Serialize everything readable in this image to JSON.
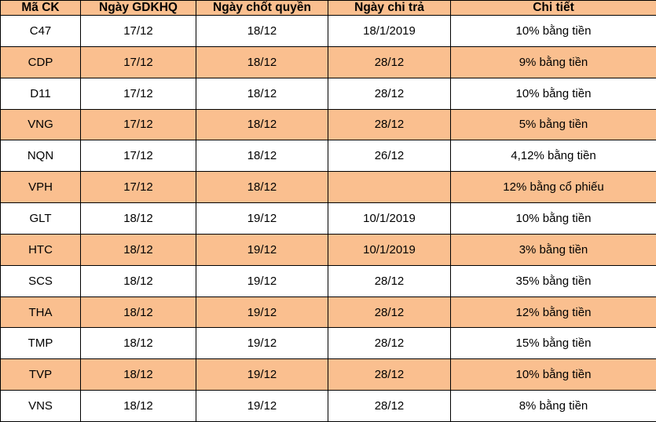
{
  "table": {
    "title_semantic": "dividend-schedule-table",
    "headers": [
      "Mã CK",
      "Ngày GDKHQ",
      "Ngày chốt quyền",
      "Ngày chi trả",
      "Chi tiết"
    ],
    "column_keys": [
      "stock-code",
      "ex-dividend-date",
      "record-date",
      "payment-date",
      "detail"
    ],
    "rows": [
      [
        "C47",
        "17/12",
        "18/12",
        "18/1/2019",
        "10% bằng tiền"
      ],
      [
        "CDP",
        "17/12",
        "18/12",
        "28/12",
        "9% bằng tiền"
      ],
      [
        "D11",
        "17/12",
        "18/12",
        "28/12",
        "10% bằng tiền"
      ],
      [
        "VNG",
        "17/12",
        "18/12",
        "28/12",
        "5% bằng tiền"
      ],
      [
        "NQN",
        "17/12",
        "18/12",
        "26/12",
        "4,12% bằng tiền"
      ],
      [
        "VPH",
        "17/12",
        "18/12",
        "",
        "12% bằng cổ phiếu"
      ],
      [
        "GLT",
        "18/12",
        "19/12",
        "10/1/2019",
        "10% bằng tiền"
      ],
      [
        "HTC",
        "18/12",
        "19/12",
        "10/1/2019",
        "3% bằng tiền"
      ],
      [
        "SCS",
        "18/12",
        "19/12",
        "28/12",
        "35% bằng tiền"
      ],
      [
        "THA",
        "18/12",
        "19/12",
        "28/12",
        "12% bằng tiền"
      ],
      [
        "TMP",
        "18/12",
        "19/12",
        "28/12",
        "15% bằng tiền"
      ],
      [
        "TVP",
        "18/12",
        "19/12",
        "28/12",
        "10% bằng tiền"
      ],
      [
        "VNS",
        "18/12",
        "19/12",
        "28/12",
        "8% bằng tiền"
      ]
    ],
    "colors": {
      "header_bg": "#FABF8F",
      "alt_row_bg": "#FABF8F",
      "row_bg": "#FFFFFF",
      "border": "#000000",
      "text": "#000000"
    }
  },
  "chart_data": {
    "type": "table",
    "title": "",
    "columns": [
      "Mã CK",
      "Ngày GDKHQ",
      "Ngày chốt quyền",
      "Ngày chi trả",
      "Chi tiết"
    ],
    "rows": [
      [
        "C47",
        "17/12",
        "18/12",
        "18/1/2019",
        "10% bằng tiền"
      ],
      [
        "CDP",
        "17/12",
        "18/12",
        "28/12",
        "9% bằng tiền"
      ],
      [
        "D11",
        "17/12",
        "18/12",
        "28/12",
        "10% bằng tiền"
      ],
      [
        "VNG",
        "17/12",
        "18/12",
        "28/12",
        "5% bằng tiền"
      ],
      [
        "NQN",
        "17/12",
        "18/12",
        "26/12",
        "4,12% bằng tiền"
      ],
      [
        "VPH",
        "17/12",
        "18/12",
        "",
        "12% bằng cổ phiếu"
      ],
      [
        "GLT",
        "18/12",
        "19/12",
        "10/1/2019",
        "10% bằng tiền"
      ],
      [
        "HTC",
        "18/12",
        "19/12",
        "10/1/2019",
        "3% bằng tiền"
      ],
      [
        "SCS",
        "18/12",
        "19/12",
        "28/12",
        "35% bằng tiền"
      ],
      [
        "THA",
        "18/12",
        "19/12",
        "28/12",
        "12% bằng tiền"
      ],
      [
        "TMP",
        "18/12",
        "19/12",
        "28/12",
        "15% bằng tiền"
      ],
      [
        "TVP",
        "18/12",
        "19/12",
        "28/12",
        "10% bằng tiền"
      ],
      [
        "VNS",
        "18/12",
        "19/12",
        "28/12",
        "8% bằng tiền"
      ]
    ]
  }
}
